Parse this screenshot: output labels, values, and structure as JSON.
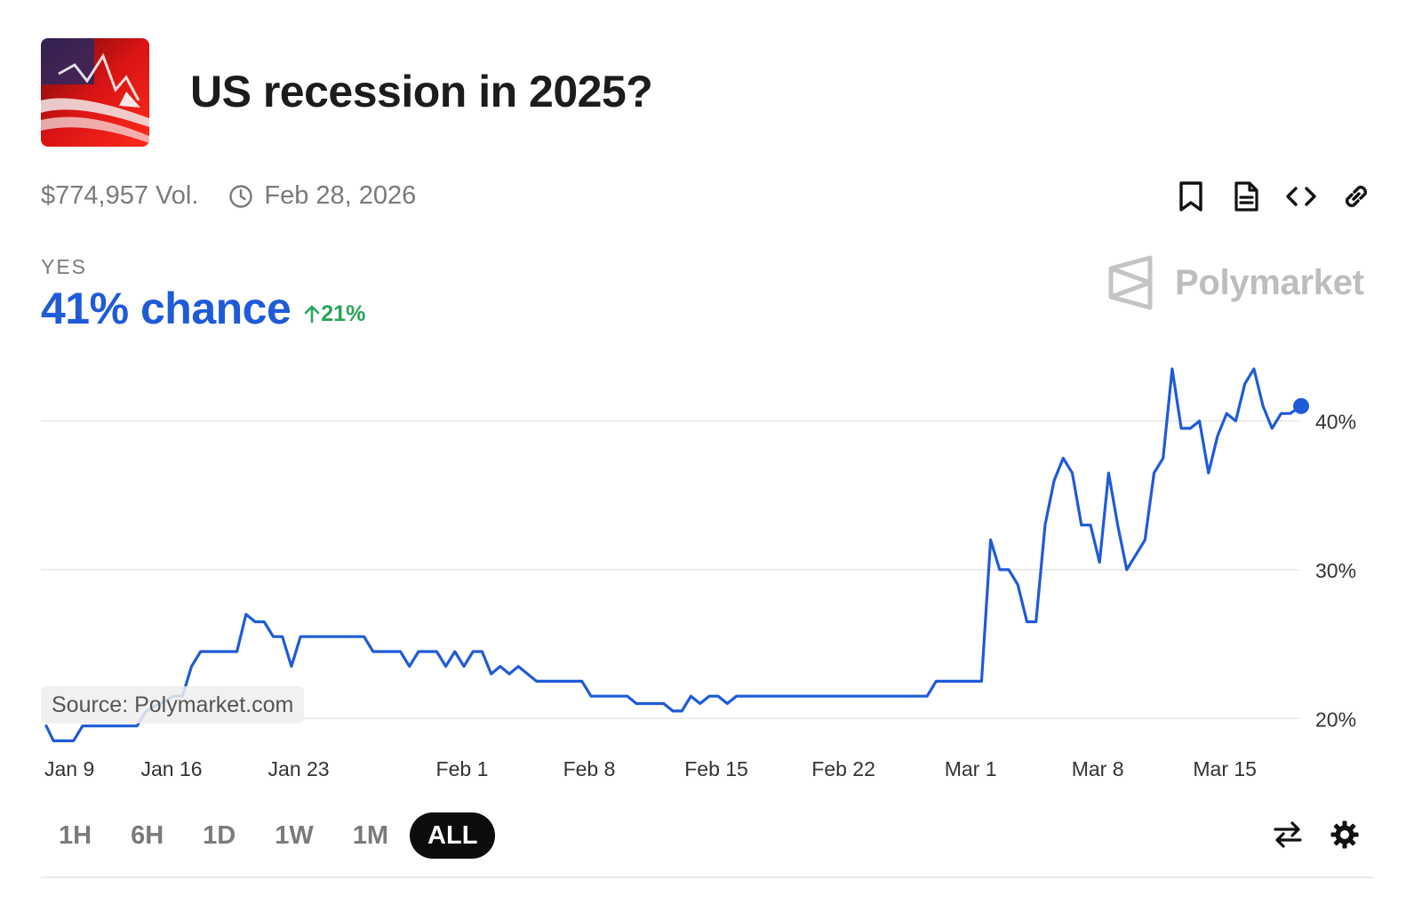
{
  "market": {
    "title": "US recession in 2025?",
    "volume": "$774,957 Vol.",
    "end_date": "Feb 28, 2026",
    "outcome_label": "YES",
    "chance": "41% chance",
    "change": "21%",
    "brand": "Polymarket",
    "source": "Source: Polymarket.com"
  },
  "actions": [
    "bookmark-icon",
    "document-icon",
    "embed-code-icon",
    "link-icon"
  ],
  "ranges": {
    "items": [
      "1H",
      "6H",
      "1D",
      "1W",
      "1M",
      "ALL"
    ],
    "active": "ALL"
  },
  "tools": [
    "swap-arrows-icon",
    "gear-icon"
  ],
  "colors": {
    "line": "#1f5bd8",
    "accent_up": "#27a35a",
    "grid": "#e6e6e6"
  },
  "chart_data": {
    "type": "line",
    "title": "",
    "xlabel": "",
    "ylabel": "",
    "x_ticks": [
      "Jan 9",
      "Jan 16",
      "Jan 23",
      "Feb 1",
      "Feb 8",
      "Feb 15",
      "Feb 22",
      "Mar 1",
      "Mar 8",
      "Mar 15"
    ],
    "x_tick_days": [
      0,
      7,
      14,
      23,
      30,
      37,
      44,
      51,
      58,
      65
    ],
    "y_ticks": [
      "20%",
      "30%",
      "40%"
    ],
    "y_tick_values": [
      20,
      30,
      40
    ],
    "ylim": [
      19.3,
      43.2
    ],
    "xlim": [
      0,
      69.2
    ],
    "grid": "horizontal",
    "series": [
      {
        "points": [
          [
            0.1,
            19.5
          ],
          [
            0.5,
            18.5
          ],
          [
            1.6,
            18.5
          ],
          [
            2.1,
            19.5
          ],
          [
            5.1,
            19.5
          ],
          [
            5.6,
            20.5
          ],
          [
            7.1,
            21.5
          ],
          [
            7.6,
            21.5
          ],
          [
            8.1,
            23.5
          ],
          [
            8.6,
            24.5
          ],
          [
            10.6,
            24.5
          ],
          [
            11.1,
            27.0
          ],
          [
            11.6,
            26.5
          ],
          [
            12.1,
            26.5
          ],
          [
            12.6,
            25.5
          ],
          [
            13.1,
            25.5
          ],
          [
            13.6,
            23.5
          ],
          [
            14.1,
            25.5
          ],
          [
            17.6,
            25.5
          ],
          [
            18.1,
            24.5
          ],
          [
            19.6,
            24.5
          ],
          [
            20.1,
            23.5
          ],
          [
            20.6,
            24.5
          ],
          [
            21.6,
            24.5
          ],
          [
            22.1,
            23.5
          ],
          [
            22.6,
            24.5
          ],
          [
            23.1,
            23.5
          ],
          [
            23.6,
            24.5
          ],
          [
            24.1,
            24.5
          ],
          [
            24.6,
            23.0
          ],
          [
            25.1,
            23.5
          ],
          [
            25.6,
            23.0
          ],
          [
            26.1,
            23.5
          ],
          [
            27.1,
            22.5
          ],
          [
            29.6,
            22.5
          ],
          [
            30.1,
            21.5
          ],
          [
            32.1,
            21.5
          ],
          [
            32.6,
            21.0
          ],
          [
            34.1,
            21.0
          ],
          [
            34.6,
            20.5
          ],
          [
            35.1,
            20.5
          ],
          [
            35.6,
            21.5
          ],
          [
            36.1,
            21.0
          ],
          [
            36.6,
            21.5
          ],
          [
            37.1,
            21.5
          ],
          [
            37.6,
            21.0
          ],
          [
            38.1,
            21.5
          ],
          [
            48.6,
            21.5
          ],
          [
            49.1,
            22.5
          ],
          [
            51.6,
            22.5
          ],
          [
            52.1,
            32.0
          ],
          [
            52.6,
            30.0
          ],
          [
            53.1,
            30.0
          ],
          [
            53.6,
            29.0
          ],
          [
            54.1,
            26.5
          ],
          [
            54.6,
            26.5
          ],
          [
            55.1,
            33.0
          ],
          [
            55.6,
            36.0
          ],
          [
            56.1,
            37.5
          ],
          [
            56.6,
            36.5
          ],
          [
            57.1,
            33.0
          ],
          [
            57.6,
            33.0
          ],
          [
            58.1,
            30.5
          ],
          [
            58.6,
            36.5
          ],
          [
            59.1,
            33.0
          ],
          [
            59.6,
            30.0
          ],
          [
            60.6,
            32.0
          ],
          [
            61.1,
            36.5
          ],
          [
            61.6,
            37.5
          ],
          [
            62.1,
            43.5
          ],
          [
            62.6,
            39.5
          ],
          [
            63.1,
            39.5
          ],
          [
            63.6,
            40.0
          ],
          [
            64.1,
            36.5
          ],
          [
            64.6,
            39.0
          ],
          [
            65.1,
            40.5
          ],
          [
            65.6,
            40.0
          ],
          [
            66.1,
            42.5
          ],
          [
            66.6,
            43.5
          ],
          [
            67.1,
            41.0
          ],
          [
            67.6,
            39.5
          ],
          [
            68.1,
            40.5
          ],
          [
            68.6,
            40.5
          ],
          [
            69.2,
            41.0
          ]
        ]
      }
    ]
  }
}
